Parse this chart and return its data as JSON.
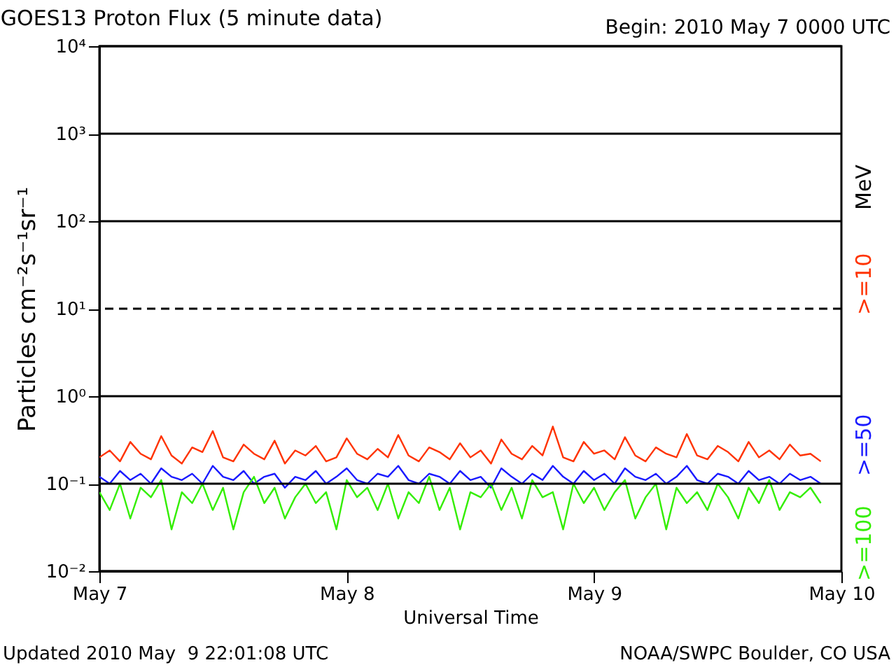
{
  "chart_data": {
    "type": "line",
    "title": "GOES13 Proton Flux (5 minute data)",
    "subtitle": "Begin: 2010 May 7 0000 UTC",
    "xlabel": "Universal Time",
    "ylabel": "Particles cm⁻²s⁻¹sr⁻¹",
    "legend_title": "MeV",
    "annotations": [
      "Updated 2010 May  9 22:01:08 UTC",
      "NOAA/SWPC Boulder, CO USA"
    ],
    "x": [
      "2010-05-07T00:00",
      "2010-05-07T01:00",
      "2010-05-07T02:00",
      "2010-05-07T03:00",
      "2010-05-07T04:00",
      "2010-05-07T05:00",
      "2010-05-07T06:00",
      "2010-05-07T07:00",
      "2010-05-07T08:00",
      "2010-05-07T09:00",
      "2010-05-07T10:00",
      "2010-05-07T11:00",
      "2010-05-07T12:00",
      "2010-05-07T13:00",
      "2010-05-07T14:00",
      "2010-05-07T15:00",
      "2010-05-07T16:00",
      "2010-05-07T17:00",
      "2010-05-07T18:00",
      "2010-05-07T19:00",
      "2010-05-07T20:00",
      "2010-05-07T21:00",
      "2010-05-07T22:00",
      "2010-05-07T23:00",
      "2010-05-08T00:00",
      "2010-05-08T01:00",
      "2010-05-08T02:00",
      "2010-05-08T03:00",
      "2010-05-08T04:00",
      "2010-05-08T05:00",
      "2010-05-08T06:00",
      "2010-05-08T07:00",
      "2010-05-08T08:00",
      "2010-05-08T09:00",
      "2010-05-08T10:00",
      "2010-05-08T11:00",
      "2010-05-08T12:00",
      "2010-05-08T13:00",
      "2010-05-08T14:00",
      "2010-05-08T15:00",
      "2010-05-08T16:00",
      "2010-05-08T17:00",
      "2010-05-08T18:00",
      "2010-05-08T19:00",
      "2010-05-08T20:00",
      "2010-05-08T21:00",
      "2010-05-08T22:00",
      "2010-05-08T23:00",
      "2010-05-09T00:00",
      "2010-05-09T01:00",
      "2010-05-09T02:00",
      "2010-05-09T03:00",
      "2010-05-09T04:00",
      "2010-05-09T05:00",
      "2010-05-09T06:00",
      "2010-05-09T07:00",
      "2010-05-09T08:00",
      "2010-05-09T09:00",
      "2010-05-09T10:00",
      "2010-05-09T11:00",
      "2010-05-09T12:00",
      "2010-05-09T13:00",
      "2010-05-09T14:00",
      "2010-05-09T15:00",
      "2010-05-09T16:00",
      "2010-05-09T17:00",
      "2010-05-09T18:00",
      "2010-05-09T19:00",
      "2010-05-09T20:00",
      "2010-05-09T21:00",
      "2010-05-09T22:00"
    ],
    "series": [
      {
        "name": ">=10",
        "color": "#ff3300",
        "values": [
          0.2,
          0.24,
          0.18,
          0.3,
          0.22,
          0.19,
          0.35,
          0.21,
          0.17,
          0.26,
          0.23,
          0.4,
          0.2,
          0.18,
          0.28,
          0.22,
          0.19,
          0.31,
          0.17,
          0.24,
          0.21,
          0.27,
          0.18,
          0.2,
          0.33,
          0.22,
          0.19,
          0.25,
          0.2,
          0.36,
          0.21,
          0.18,
          0.26,
          0.23,
          0.19,
          0.29,
          0.2,
          0.24,
          0.17,
          0.32,
          0.22,
          0.19,
          0.27,
          0.21,
          0.45,
          0.2,
          0.18,
          0.3,
          0.22,
          0.24,
          0.19,
          0.34,
          0.21,
          0.18,
          0.26,
          0.22,
          0.2,
          0.37,
          0.21,
          0.19,
          0.27,
          0.23,
          0.18,
          0.3,
          0.2,
          0.24,
          0.19,
          0.28,
          0.21,
          0.22,
          0.18
        ]
      },
      {
        "name": ">=50",
        "color": "#1a1aff",
        "values": [
          0.12,
          0.1,
          0.14,
          0.11,
          0.13,
          0.1,
          0.15,
          0.12,
          0.11,
          0.13,
          0.1,
          0.16,
          0.12,
          0.11,
          0.14,
          0.1,
          0.12,
          0.13,
          0.09,
          0.12,
          0.11,
          0.14,
          0.1,
          0.12,
          0.15,
          0.11,
          0.1,
          0.13,
          0.12,
          0.16,
          0.11,
          0.1,
          0.13,
          0.12,
          0.1,
          0.14,
          0.11,
          0.12,
          0.09,
          0.15,
          0.12,
          0.1,
          0.13,
          0.11,
          0.16,
          0.12,
          0.1,
          0.14,
          0.11,
          0.13,
          0.1,
          0.15,
          0.12,
          0.11,
          0.13,
          0.1,
          0.12,
          0.16,
          0.11,
          0.1,
          0.13,
          0.12,
          0.1,
          0.14,
          0.11,
          0.12,
          0.1,
          0.13,
          0.11,
          0.12,
          0.1
        ]
      },
      {
        "name": ">=100",
        "color": "#33ee00",
        "values": [
          0.08,
          0.05,
          0.1,
          0.04,
          0.09,
          0.07,
          0.11,
          0.03,
          0.08,
          0.06,
          0.1,
          0.05,
          0.09,
          0.03,
          0.08,
          0.12,
          0.06,
          0.09,
          0.04,
          0.07,
          0.1,
          0.06,
          0.08,
          0.03,
          0.11,
          0.07,
          0.09,
          0.05,
          0.1,
          0.04,
          0.08,
          0.06,
          0.12,
          0.05,
          0.09,
          0.03,
          0.08,
          0.07,
          0.1,
          0.05,
          0.09,
          0.04,
          0.11,
          0.07,
          0.08,
          0.03,
          0.1,
          0.06,
          0.09,
          0.05,
          0.08,
          0.11,
          0.04,
          0.07,
          0.1,
          0.03,
          0.09,
          0.06,
          0.08,
          0.05,
          0.1,
          0.07,
          0.04,
          0.09,
          0.06,
          0.11,
          0.05,
          0.08,
          0.07,
          0.09,
          0.06
        ]
      }
    ],
    "log": "y",
    "xlim": [
      "2010-05-07",
      "2010-05-10"
    ],
    "xticks": [
      {
        "value": "2010-05-07",
        "label": "May 7"
      },
      {
        "value": "2010-05-08",
        "label": "May 8"
      },
      {
        "value": "2010-05-09",
        "label": "May 9"
      },
      {
        "value": "2010-05-10",
        "label": "May 10"
      }
    ],
    "ylim": [
      0.01,
      10000
    ],
    "yticks": [
      {
        "value": 0.01,
        "label": "10⁻²"
      },
      {
        "value": 0.1,
        "label": "10⁻¹"
      },
      {
        "value": 1,
        "label": "10⁰"
      },
      {
        "value": 10,
        "label": "10¹"
      },
      {
        "value": 100,
        "label": "10²"
      },
      {
        "value": 1000,
        "label": "10³"
      },
      {
        "value": 10000,
        "label": "10⁴"
      }
    ],
    "ref_lines": [
      {
        "axis": "y",
        "value": 10,
        "line_style": "dashed"
      }
    ],
    "grid": "y",
    "legend": "right",
    "line_style": "solid",
    "marker": "none"
  }
}
